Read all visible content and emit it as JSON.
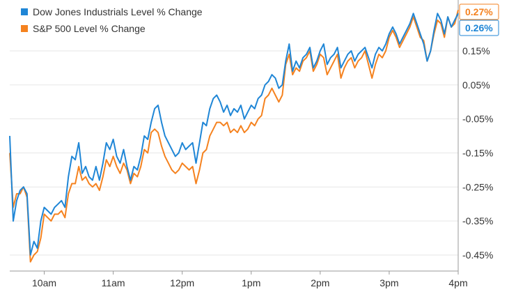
{
  "chart_data": {
    "type": "line",
    "title": "",
    "xlabel": "",
    "ylabel": "",
    "x_ticks": [
      "10am",
      "11am",
      "12pm",
      "1pm",
      "2pm",
      "3pm",
      "4pm"
    ],
    "x_range": [
      "9:30am",
      "4pm"
    ],
    "y_ticks": [
      "0.15%",
      "0.05%",
      "-0.05%",
      "-0.15%",
      "-0.25%",
      "-0.35%",
      "-0.45%"
    ],
    "y_range": [
      -0.48,
      0.3
    ],
    "grid": "horizontal",
    "legend_position": "top-left",
    "series": [
      {
        "name": "Dow Jones Industrials Level % Change",
        "color": "#1f86d6",
        "last_label": "0.26%",
        "x": [
          "9:30",
          "9:33",
          "9:36",
          "9:39",
          "9:42",
          "9:45",
          "9:48",
          "9:51",
          "9:54",
          "9:57",
          "10:00",
          "10:03",
          "10:06",
          "10:09",
          "10:12",
          "10:15",
          "10:18",
          "10:21",
          "10:24",
          "10:27",
          "10:30",
          "10:33",
          "10:36",
          "10:39",
          "10:42",
          "10:45",
          "10:48",
          "10:51",
          "10:54",
          "10:57",
          "11:00",
          "11:03",
          "11:06",
          "11:09",
          "11:12",
          "11:15",
          "11:18",
          "11:21",
          "11:24",
          "11:27",
          "11:30",
          "11:33",
          "11:36",
          "11:39",
          "11:42",
          "11:45",
          "11:48",
          "11:51",
          "11:54",
          "11:57",
          "12:00",
          "12:03",
          "12:06",
          "12:09",
          "12:12",
          "12:15",
          "12:18",
          "12:21",
          "12:24",
          "12:27",
          "12:30",
          "12:33",
          "12:36",
          "12:39",
          "12:42",
          "12:45",
          "12:48",
          "12:51",
          "12:54",
          "12:57",
          "13:00",
          "13:03",
          "13:06",
          "13:09",
          "13:12",
          "13:15",
          "13:18",
          "13:21",
          "13:24",
          "13:27",
          "13:30",
          "13:33",
          "13:36",
          "13:39",
          "13:42",
          "13:45",
          "13:48",
          "13:51",
          "13:54",
          "13:57",
          "14:00",
          "14:03",
          "14:06",
          "14:09",
          "14:12",
          "14:15",
          "14:18",
          "14:21",
          "14:24",
          "14:27",
          "14:30",
          "14:33",
          "14:36",
          "14:39",
          "14:42",
          "14:45",
          "14:48",
          "14:51",
          "14:54",
          "14:57",
          "15:00",
          "15:03",
          "15:06",
          "15:09",
          "15:12",
          "15:15",
          "15:18",
          "15:21",
          "15:24",
          "15:27",
          "15:30",
          "15:33",
          "15:36",
          "15:39",
          "15:42",
          "15:45",
          "15:48",
          "15:51",
          "15:54",
          "15:57",
          "16:00"
        ],
        "values": [
          -0.1,
          -0.35,
          -0.29,
          -0.26,
          -0.25,
          -0.27,
          -0.45,
          -0.41,
          -0.43,
          -0.35,
          -0.31,
          -0.32,
          -0.33,
          -0.31,
          -0.3,
          -0.29,
          -0.31,
          -0.22,
          -0.16,
          -0.17,
          -0.12,
          -0.21,
          -0.19,
          -0.22,
          -0.23,
          -0.19,
          -0.23,
          -0.18,
          -0.12,
          -0.14,
          -0.11,
          -0.16,
          -0.18,
          -0.14,
          -0.19,
          -0.23,
          -0.19,
          -0.2,
          -0.16,
          -0.1,
          -0.11,
          -0.06,
          -0.02,
          -0.01,
          -0.06,
          -0.1,
          -0.12,
          -0.14,
          -0.16,
          -0.15,
          -0.12,
          -0.14,
          -0.13,
          -0.12,
          -0.18,
          -0.12,
          -0.06,
          -0.07,
          -0.02,
          0.01,
          0.02,
          0.0,
          -0.03,
          -0.01,
          -0.04,
          -0.02,
          -0.03,
          -0.01,
          -0.05,
          -0.03,
          -0.01,
          -0.02,
          0.01,
          0.02,
          0.05,
          0.06,
          0.08,
          0.07,
          0.04,
          0.05,
          0.12,
          0.17,
          0.09,
          0.12,
          0.1,
          0.13,
          0.14,
          0.16,
          0.1,
          0.12,
          0.15,
          0.17,
          0.11,
          0.13,
          0.14,
          0.16,
          0.1,
          0.12,
          0.14,
          0.15,
          0.12,
          0.14,
          0.15,
          0.16,
          0.13,
          0.1,
          0.14,
          0.16,
          0.15,
          0.17,
          0.2,
          0.22,
          0.2,
          0.17,
          0.19,
          0.21,
          0.23,
          0.26,
          0.23,
          0.2,
          0.17,
          0.12,
          0.15,
          0.21,
          0.26,
          0.24,
          0.2,
          0.25,
          0.22,
          0.24,
          0.26
        ],
        "_note_ignore": ""
      },
      {
        "name": "S&P 500 Level % Change",
        "color": "#f5821f",
        "last_label": "0.27%",
        "x": [
          "9:30",
          "9:33",
          "9:36",
          "9:39",
          "9:42",
          "9:45",
          "9:48",
          "9:51",
          "9:54",
          "9:57",
          "10:00",
          "10:03",
          "10:06",
          "10:09",
          "10:12",
          "10:15",
          "10:18",
          "10:21",
          "10:24",
          "10:27",
          "10:30",
          "10:33",
          "10:36",
          "10:39",
          "10:42",
          "10:45",
          "10:48",
          "10:51",
          "10:54",
          "10:57",
          "11:00",
          "11:03",
          "11:06",
          "11:09",
          "11:12",
          "11:15",
          "11:18",
          "11:21",
          "11:24",
          "11:27",
          "11:30",
          "11:33",
          "11:36",
          "11:39",
          "11:42",
          "11:45",
          "11:48",
          "11:51",
          "11:54",
          "11:57",
          "12:00",
          "12:03",
          "12:06",
          "12:09",
          "12:12",
          "12:15",
          "12:18",
          "12:21",
          "12:24",
          "12:27",
          "12:30",
          "12:33",
          "12:36",
          "12:39",
          "12:42",
          "12:45",
          "12:48",
          "12:51",
          "12:54",
          "12:57",
          "13:00",
          "13:03",
          "13:06",
          "13:09",
          "13:12",
          "13:15",
          "13:18",
          "13:21",
          "13:24",
          "13:27",
          "13:30",
          "13:33",
          "13:36",
          "13:39",
          "13:42",
          "13:45",
          "13:48",
          "13:51",
          "13:54",
          "13:57",
          "14:00",
          "14:03",
          "14:06",
          "14:09",
          "14:12",
          "14:15",
          "14:18",
          "14:21",
          "14:24",
          "14:27",
          "14:30",
          "14:33",
          "14:36",
          "14:39",
          "14:42",
          "14:45",
          "14:48",
          "14:51",
          "14:54",
          "14:57",
          "15:00",
          "15:03",
          "15:06",
          "15:09",
          "15:12",
          "15:15",
          "15:18",
          "15:21",
          "15:24",
          "15:27",
          "15:30",
          "15:33",
          "15:36",
          "15:39",
          "15:42",
          "15:45",
          "15:48",
          "15:51",
          "15:54",
          "15:57",
          "16:00"
        ],
        "values": [
          -0.15,
          -0.31,
          -0.27,
          -0.27,
          -0.25,
          -0.28,
          -0.47,
          -0.45,
          -0.44,
          -0.4,
          -0.33,
          -0.34,
          -0.35,
          -0.33,
          -0.33,
          -0.32,
          -0.34,
          -0.27,
          -0.24,
          -0.24,
          -0.19,
          -0.23,
          -0.22,
          -0.24,
          -0.25,
          -0.24,
          -0.26,
          -0.22,
          -0.17,
          -0.19,
          -0.16,
          -0.19,
          -0.21,
          -0.18,
          -0.2,
          -0.24,
          -0.21,
          -0.22,
          -0.19,
          -0.14,
          -0.15,
          -0.09,
          -0.08,
          -0.09,
          -0.13,
          -0.16,
          -0.18,
          -0.2,
          -0.21,
          -0.2,
          -0.18,
          -0.19,
          -0.2,
          -0.19,
          -0.24,
          -0.2,
          -0.15,
          -0.14,
          -0.1,
          -0.08,
          -0.06,
          -0.06,
          -0.07,
          -0.06,
          -0.09,
          -0.08,
          -0.09,
          -0.07,
          -0.09,
          -0.08,
          -0.06,
          -0.07,
          -0.05,
          -0.04,
          0.01,
          0.02,
          0.04,
          0.02,
          0.0,
          0.02,
          0.11,
          0.14,
          0.08,
          0.1,
          0.09,
          0.12,
          0.13,
          0.15,
          0.09,
          0.11,
          0.14,
          0.13,
          0.08,
          0.1,
          0.12,
          0.14,
          0.07,
          0.1,
          0.12,
          0.13,
          0.1,
          0.12,
          0.13,
          0.15,
          0.11,
          0.07,
          0.11,
          0.14,
          0.13,
          0.15,
          0.19,
          0.21,
          0.19,
          0.16,
          0.18,
          0.2,
          0.22,
          0.25,
          0.22,
          0.19,
          0.18,
          0.12,
          0.15,
          0.2,
          0.24,
          0.23,
          0.19,
          0.25,
          0.22,
          0.23,
          0.27
        ]
      }
    ]
  },
  "legend": {
    "dow_label": "Dow Jones Industrials Level % Change",
    "sp_label": "S&P 500 Level % Change"
  },
  "colors": {
    "dow": "#1f86d6",
    "sp": "#f5821f",
    "grid": "#e6e6e6",
    "axis": "#999999"
  }
}
